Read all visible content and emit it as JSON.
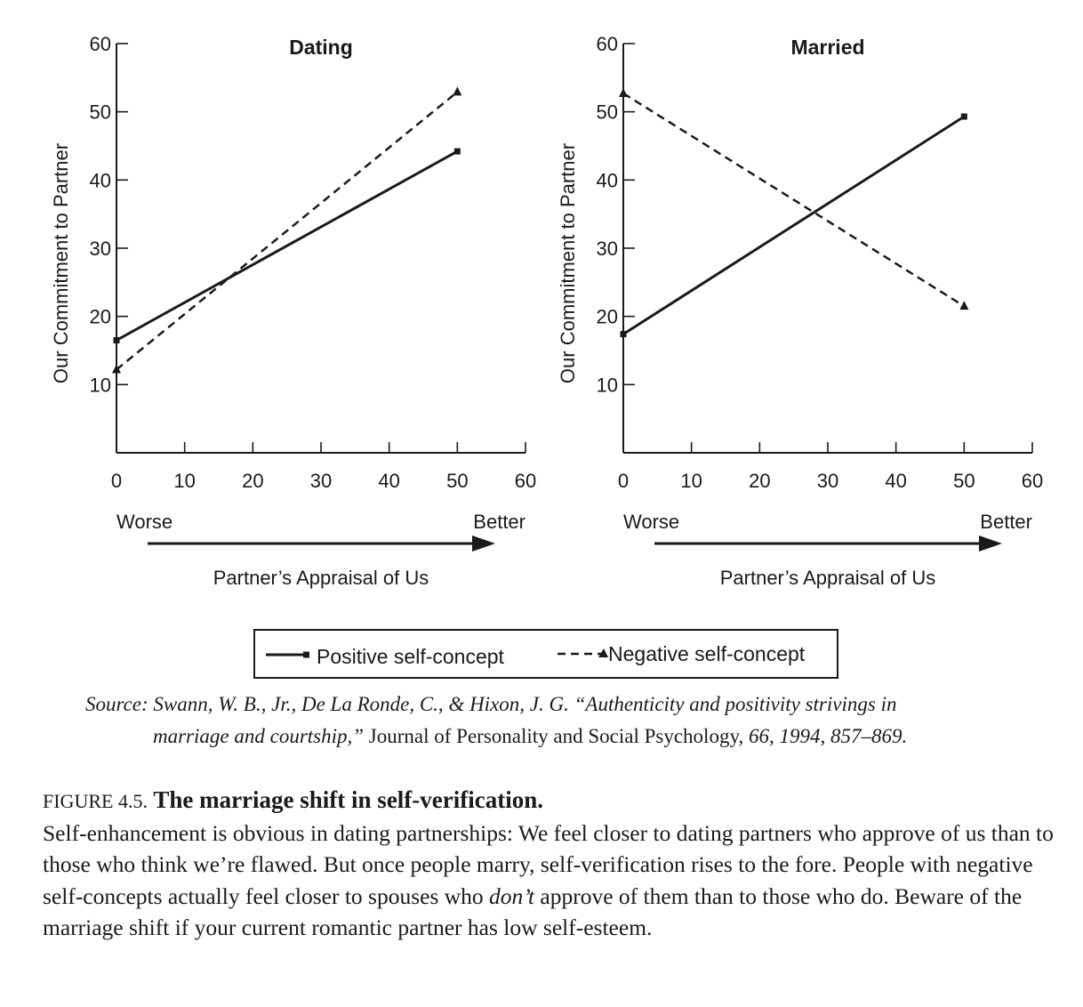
{
  "chart_data": [
    {
      "type": "line",
      "title": "Dating",
      "ylabel": "Our Commitment to Partner",
      "xlabel": "Partner’s Appraisal of Us",
      "x_left_label": "Worse",
      "x_right_label": "Better",
      "xlim": [
        0,
        60
      ],
      "ylim": [
        0,
        60
      ],
      "xticks": [
        0,
        10,
        20,
        30,
        40,
        50,
        60
      ],
      "yticks": [
        10,
        20,
        30,
        40,
        50,
        60
      ],
      "grid": false,
      "series": [
        {
          "name": "Positive self-concept",
          "style": "solid",
          "marker": "square",
          "x": [
            0,
            50
          ],
          "y": [
            16.5,
            44.2
          ]
        },
        {
          "name": "Negative self-concept",
          "style": "dashed",
          "marker": "triangle",
          "x": [
            0,
            50
          ],
          "y": [
            12.2,
            52.9
          ]
        }
      ]
    },
    {
      "type": "line",
      "title": "Married",
      "ylabel": "Our Commitment to Partner",
      "xlabel": "Partner’s Appraisal of Us",
      "x_left_label": "Worse",
      "x_right_label": "Better",
      "xlim": [
        0,
        60
      ],
      "ylim": [
        0,
        60
      ],
      "xticks": [
        0,
        10,
        20,
        30,
        40,
        50,
        60
      ],
      "yticks": [
        10,
        20,
        30,
        40,
        50,
        60
      ],
      "grid": false,
      "series": [
        {
          "name": "Positive self-concept",
          "style": "solid",
          "marker": "square",
          "x": [
            0,
            50
          ],
          "y": [
            17.4,
            49.3
          ]
        },
        {
          "name": "Negative self-concept",
          "style": "dashed",
          "marker": "triangle",
          "x": [
            0,
            50
          ],
          "y": [
            52.7,
            21.5
          ]
        }
      ]
    }
  ],
  "legend": {
    "positive": "Positive self-concept",
    "negative": "Negative self-concept"
  },
  "source": {
    "line1": "Source: Swann, W. B., Jr., De La Ronde, C., & Hixon, J. G. “Authenticity and positivity strivings in",
    "line2_italic": "marriage and courtship,”",
    "line2_journal": " Journal of Personality and Social Psychology,",
    "line2_end": " 66, 1994, 857–869."
  },
  "caption": {
    "figure_label": "FIGURE 4.5.",
    "title": "The marriage shift in self-verification.",
    "text1": "Self-enhancement is obvious in dating partnerships: We feel closer to dating partners who approve of us than to those who think we’re flawed. But once people marry, self-verification rises to the fore. People with negative self-concepts actually feel closer to spouses who ",
    "emph": "don’t",
    "text2": " approve of them than to those who do. Beware of the marriage shift if your current romantic partner has low self-esteem."
  },
  "colors": {
    "ink": "#1a1a1a",
    "background": "#ffffff"
  }
}
